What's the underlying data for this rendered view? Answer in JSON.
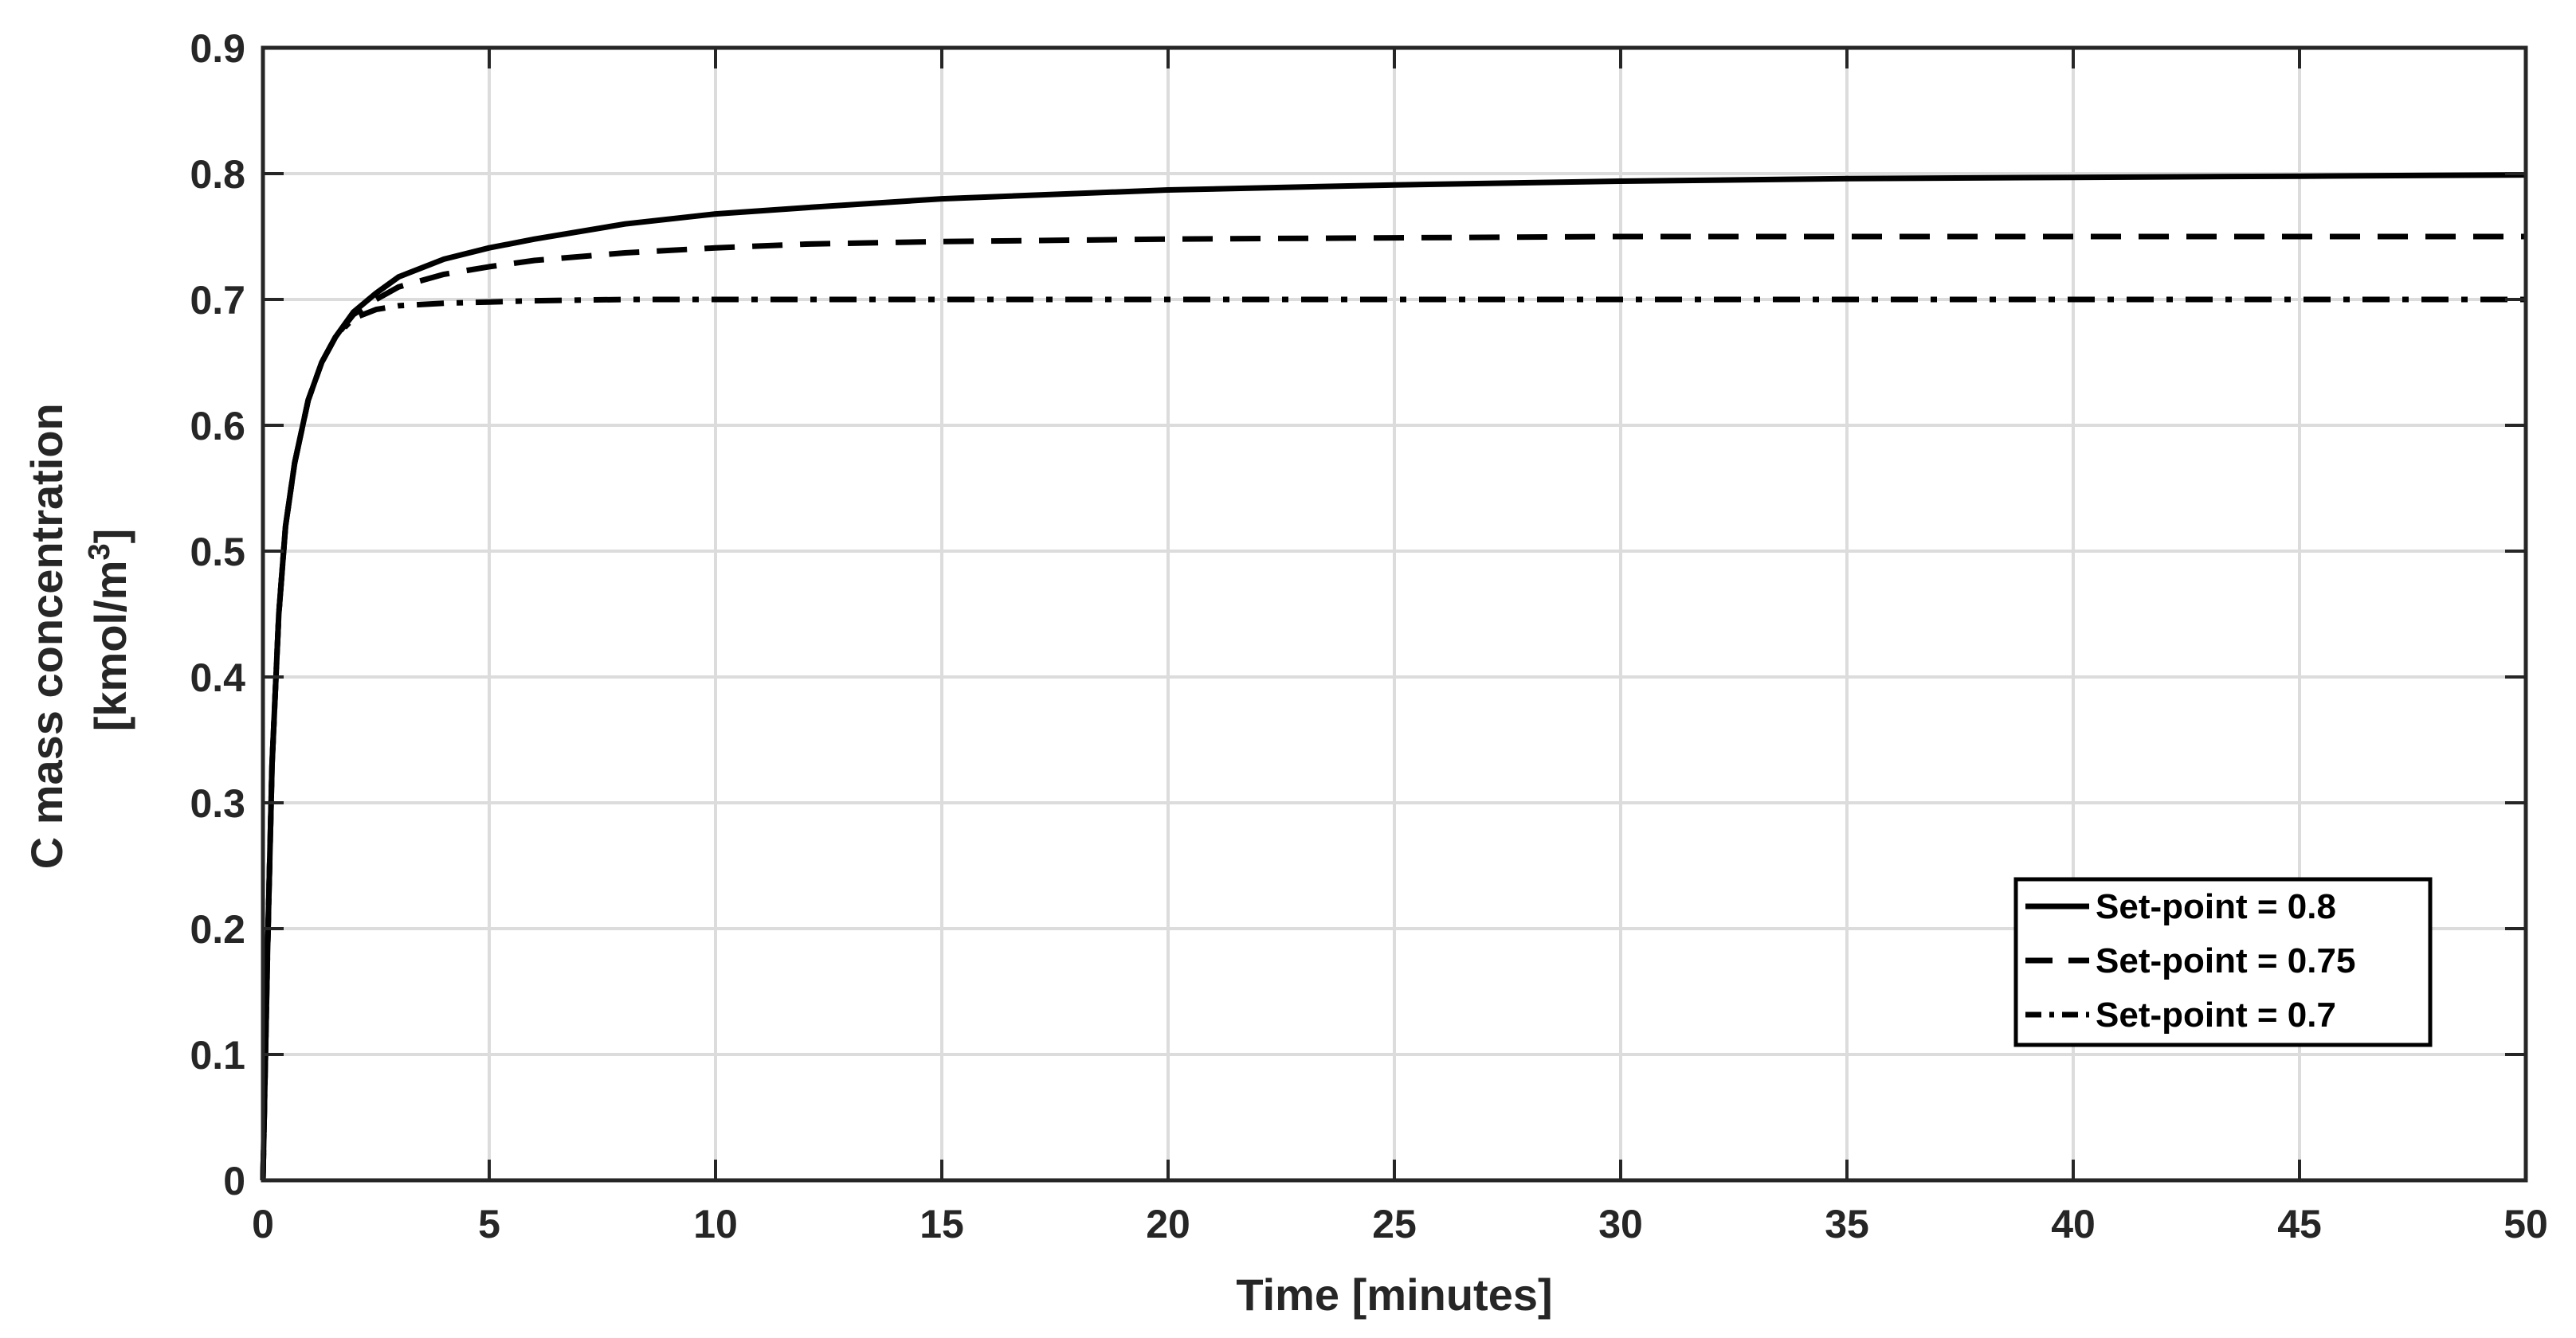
{
  "chart_data": {
    "type": "line",
    "xlabel": "Time [minutes]",
    "ylabel": {
      "line1": "C mass concentration",
      "line2_prefix": "[kmol/m",
      "line2_superscript": "3",
      "line2_suffix": "]"
    },
    "xlim": [
      0,
      50
    ],
    "ylim": [
      0,
      0.9
    ],
    "x_ticks": [
      0,
      5,
      10,
      15,
      20,
      25,
      30,
      35,
      40,
      45,
      50
    ],
    "x_tick_labels": [
      "0",
      "5",
      "10",
      "15",
      "20",
      "25",
      "30",
      "35",
      "40",
      "45",
      "50"
    ],
    "y_ticks": [
      0,
      0.1,
      0.2,
      0.3,
      0.4,
      0.5,
      0.6,
      0.7,
      0.8,
      0.9
    ],
    "y_tick_labels": [
      "0",
      "0.1",
      "0.2",
      "0.3",
      "0.4",
      "0.5",
      "0.6",
      "0.7",
      "0.8",
      "0.9"
    ],
    "grid": true,
    "legend_position": "bottom-right",
    "series": [
      {
        "name": "Set-point = 0.8",
        "line_style": "solid",
        "x": [
          0,
          0.1,
          0.2,
          0.35,
          0.5,
          0.7,
          1.0,
          1.3,
          1.6,
          2.0,
          2.5,
          3.0,
          4.0,
          5.0,
          6.0,
          8.0,
          10,
          12,
          15,
          20,
          25,
          30,
          35,
          40,
          45,
          50
        ],
        "y": [
          0,
          0.18,
          0.33,
          0.45,
          0.52,
          0.57,
          0.62,
          0.65,
          0.67,
          0.69,
          0.705,
          0.718,
          0.732,
          0.741,
          0.748,
          0.76,
          0.768,
          0.773,
          0.78,
          0.787,
          0.791,
          0.794,
          0.796,
          0.797,
          0.798,
          0.799
        ]
      },
      {
        "name": "Set-point = 0.75",
        "line_style": "dashed",
        "x": [
          0,
          0.1,
          0.2,
          0.35,
          0.5,
          0.7,
          1.0,
          1.3,
          1.6,
          2.0,
          2.5,
          3.0,
          4.0,
          5.0,
          6.0,
          8.0,
          10,
          12,
          15,
          20,
          25,
          30,
          35,
          40,
          45,
          50
        ],
        "y": [
          0,
          0.18,
          0.33,
          0.45,
          0.52,
          0.57,
          0.62,
          0.65,
          0.67,
          0.688,
          0.7,
          0.71,
          0.72,
          0.726,
          0.731,
          0.737,
          0.741,
          0.744,
          0.746,
          0.748,
          0.749,
          0.75,
          0.75,
          0.75,
          0.75,
          0.75
        ]
      },
      {
        "name": "Set-point = 0.7",
        "line_style": "dash-dot",
        "x": [
          0,
          0.1,
          0.2,
          0.35,
          0.5,
          0.7,
          1.0,
          1.3,
          1.6,
          2.0,
          2.5,
          3.0,
          4.0,
          5.0,
          6.0,
          8.0,
          10,
          15,
          20,
          30,
          40,
          50
        ],
        "y": [
          0,
          0.18,
          0.33,
          0.45,
          0.52,
          0.57,
          0.62,
          0.65,
          0.67,
          0.685,
          0.692,
          0.695,
          0.697,
          0.698,
          0.699,
          0.7,
          0.7,
          0.7,
          0.7,
          0.7,
          0.7,
          0.7
        ]
      }
    ]
  }
}
